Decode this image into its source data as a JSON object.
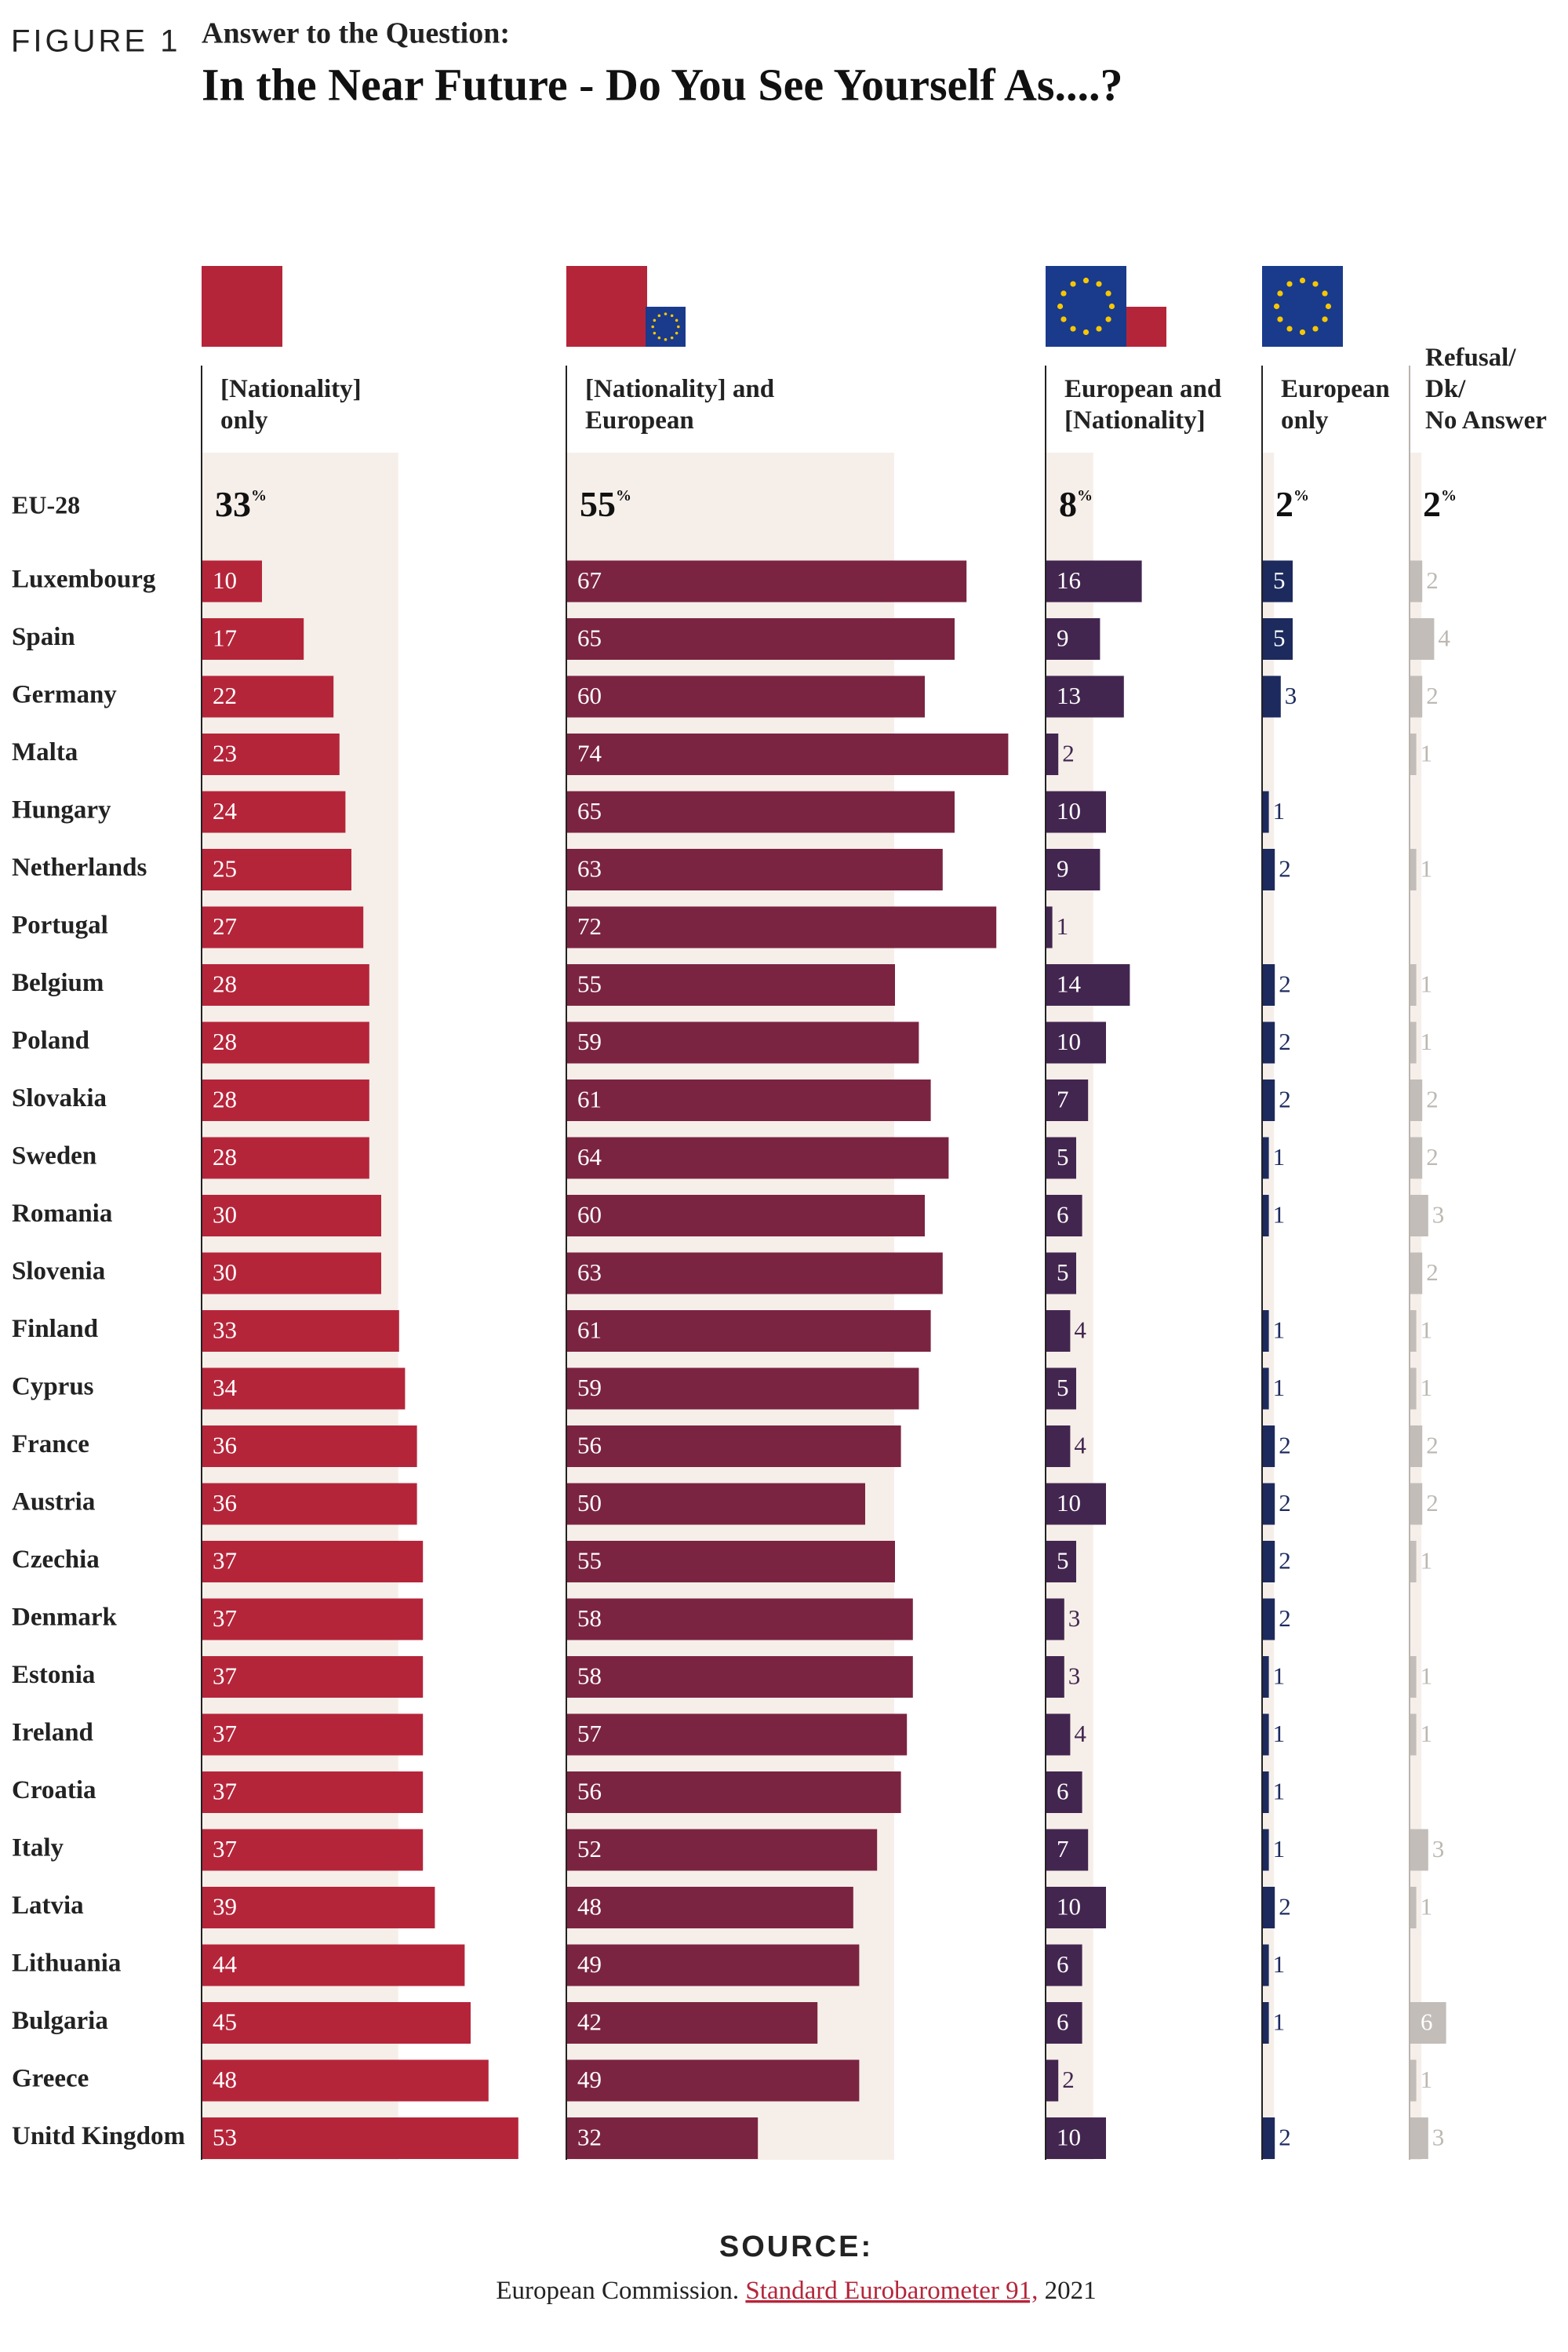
{
  "chart_data": {
    "type": "bar",
    "figure_label": "FIGURE 1",
    "subtitle": "Answer to the Question:",
    "title": "In the Near Future - Do You See Yourself As....?",
    "total_category": "EU-28",
    "unit": "%",
    "categories": [
      "Luxembourg",
      "Spain",
      "Germany",
      "Malta",
      "Hungary",
      "Netherlands",
      "Portugal",
      "Belgium",
      "Poland",
      "Slovakia",
      "Sweden",
      "Romania",
      "Slovenia",
      "Finland",
      "Cyprus",
      "France",
      "Austria",
      "Czechia",
      "Denmark",
      "Estonia",
      "Ireland",
      "Croatia",
      "Italy",
      "Latvia",
      "Lithuania",
      "Bulgaria",
      "Greece",
      "Unitd Kingdom"
    ],
    "series": [
      {
        "name": "[Nationality]\nonly",
        "color": "#b5253a",
        "eu_value": 33,
        "values": [
          10,
          17,
          22,
          23,
          24,
          25,
          27,
          28,
          28,
          28,
          28,
          30,
          30,
          33,
          34,
          36,
          36,
          37,
          37,
          37,
          37,
          37,
          37,
          39,
          44,
          45,
          48,
          53
        ]
      },
      {
        "name": "[Nationality] and\nEuropean",
        "color": "#7b2442",
        "eu_value": 55,
        "values": [
          67,
          65,
          60,
          74,
          65,
          63,
          72,
          55,
          59,
          61,
          64,
          60,
          63,
          61,
          59,
          56,
          50,
          55,
          58,
          58,
          57,
          56,
          52,
          48,
          49,
          42,
          49,
          32
        ]
      },
      {
        "name": "European and\n[Nationality]",
        "color": "#432650",
        "eu_value": 8,
        "values": [
          16,
          9,
          13,
          2,
          10,
          9,
          1,
          14,
          10,
          7,
          5,
          6,
          5,
          4,
          5,
          4,
          10,
          5,
          3,
          3,
          4,
          6,
          7,
          10,
          6,
          6,
          2,
          10
        ]
      },
      {
        "name": "European\nonly",
        "color": "#1c2a5e",
        "eu_value": 2,
        "values": [
          5,
          5,
          3,
          null,
          1,
          2,
          null,
          2,
          2,
          2,
          1,
          1,
          null,
          1,
          1,
          2,
          2,
          2,
          2,
          1,
          1,
          1,
          1,
          2,
          1,
          1,
          null,
          2
        ]
      },
      {
        "name": "Refusal/\nDk/\nNo Answer",
        "color": "#c2bdb9",
        "eu_value": 2,
        "values": [
          2,
          4,
          2,
          1,
          null,
          1,
          null,
          1,
          1,
          2,
          2,
          3,
          2,
          1,
          1,
          2,
          2,
          1,
          null,
          1,
          1,
          null,
          3,
          1,
          null,
          6,
          1,
          3
        ]
      }
    ],
    "source_heading": "SOURCE:",
    "source_text": "European Commission.",
    "source_link": "Standard Eurobarometer 91,",
    "source_year": "2021"
  }
}
